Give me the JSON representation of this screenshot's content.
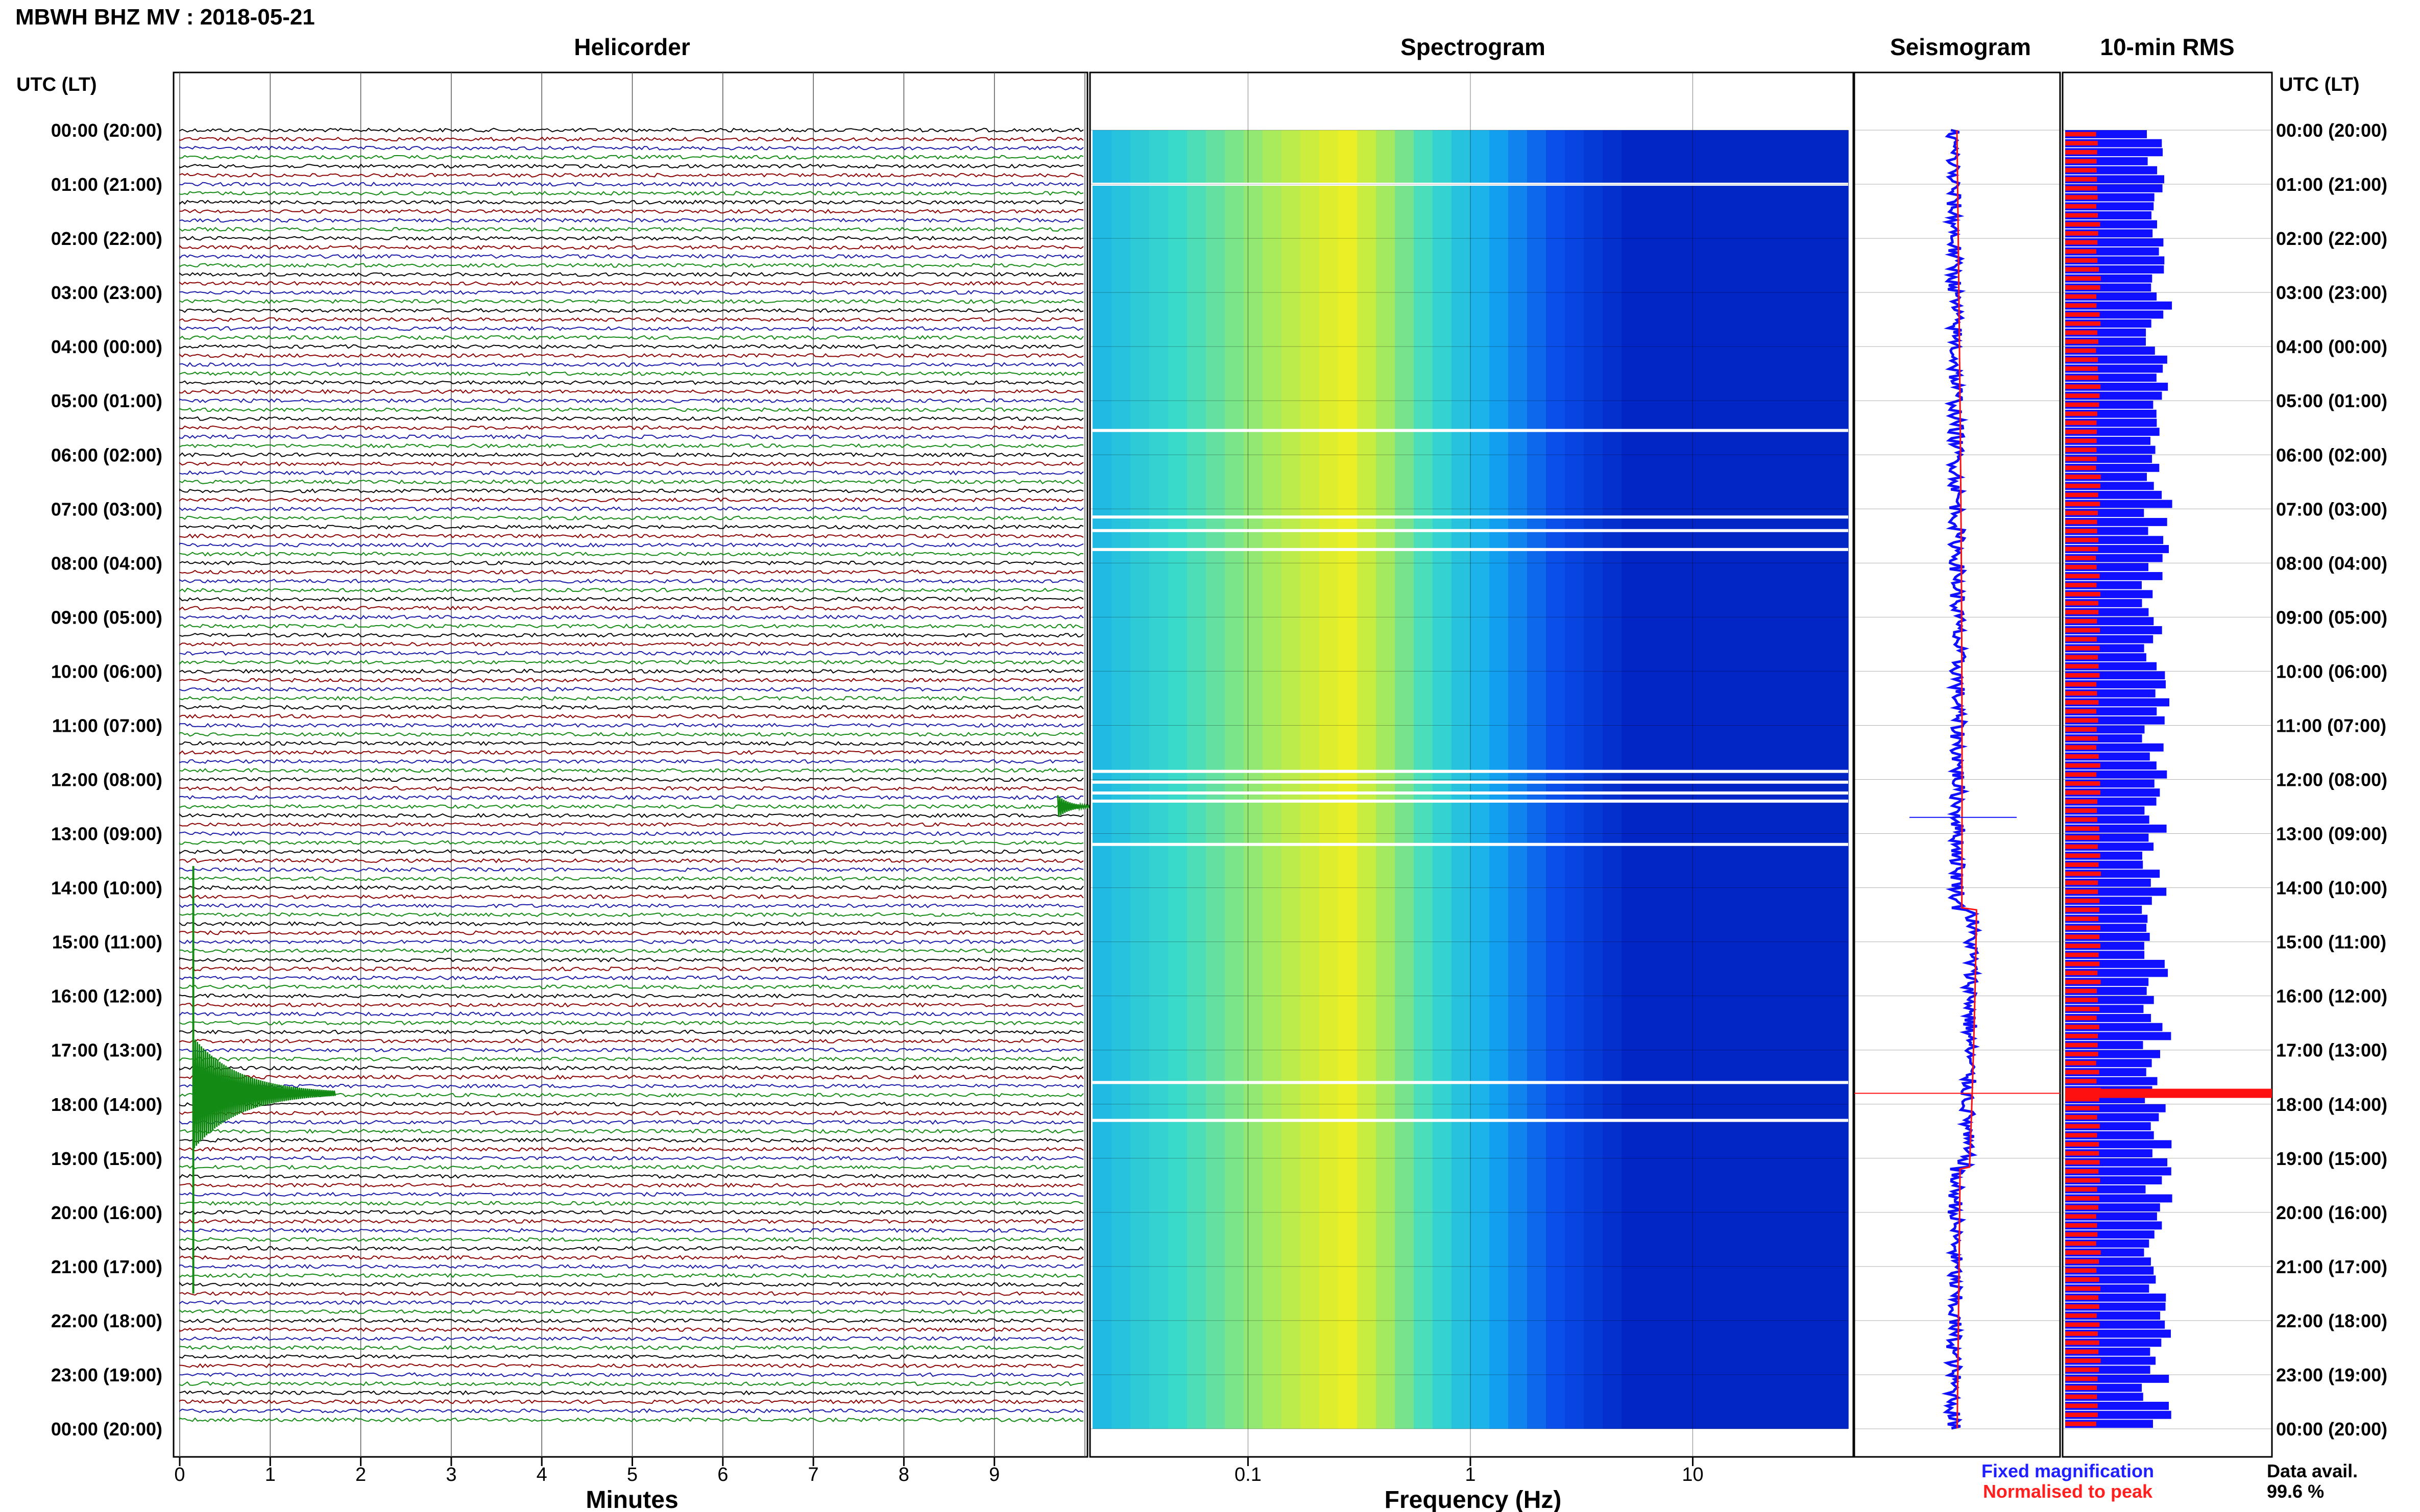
{
  "header": {
    "station_title": "MBWH BHZ MV : 2018-05-21"
  },
  "panels": {
    "helicorder": "Helicorder",
    "spectrogram": "Spectrogram",
    "seismogram": "Seismogram",
    "rms": "10-min RMS"
  },
  "time_axis_label": "UTC (LT)",
  "time_labels": [
    "00:00 (20:00)",
    "01:00 (21:00)",
    "02:00 (22:00)",
    "03:00 (23:00)",
    "04:00 (00:00)",
    "05:00 (01:00)",
    "06:00 (02:00)",
    "07:00 (03:00)",
    "08:00 (04:00)",
    "09:00 (05:00)",
    "10:00 (06:00)",
    "11:00 (07:00)",
    "12:00 (08:00)",
    "13:00 (09:00)",
    "14:00 (10:00)",
    "15:00 (11:00)",
    "16:00 (12:00)",
    "17:00 (13:00)",
    "18:00 (14:00)",
    "19:00 (15:00)",
    "20:00 (16:00)",
    "21:00 (17:00)",
    "22:00 (18:00)",
    "23:00 (19:00)",
    "00:00 (20:00)"
  ],
  "helicorder_axis": {
    "xlabel": "Minutes",
    "ticks": [
      "0",
      "1",
      "2",
      "3",
      "4",
      "5",
      "6",
      "7",
      "8",
      "9"
    ]
  },
  "spectrogram_axis": {
    "xlabel": "Frequency (Hz)",
    "ticks": [
      "0.1",
      "1",
      "10"
    ]
  },
  "legend": {
    "fixed": "Fixed magnification",
    "normalised": "Normalised to peak",
    "fixed_color": "#1f1fff",
    "normalised_color": "#ff1f1f"
  },
  "data_avail": {
    "label": "Data avail.",
    "value": "99.6 %"
  },
  "colors": {
    "trace_colors": [
      "#000000",
      "#8b0000",
      "#1a1aa8",
      "#138a13"
    ],
    "spectrogram_low": "#0020c8",
    "spectrogram_mid": "#ffee10",
    "rms_fixed": "#1010ff",
    "rms_normalised": "#ff1010"
  },
  "chart_data": [
    {
      "type": "line",
      "title": "Helicorder",
      "xlabel": "Minutes",
      "xlim": [
        0,
        10
      ],
      "ylim_hours_utc": [
        0,
        24
      ],
      "traces_per_hour": 6,
      "notable_events": [
        {
          "utc_hour": 12.5,
          "minute": 9.7,
          "note": "small event"
        },
        {
          "utc_hour": 17.8,
          "minute": 0.15,
          "note": "large event"
        }
      ]
    },
    {
      "type": "heatmap",
      "title": "Spectrogram",
      "xlabel": "Frequency (Hz)",
      "x_scale": "log",
      "xlim": [
        0.02,
        50
      ],
      "ylim_hours_utc": [
        0,
        24
      ],
      "peak_frequency_hz": 0.25,
      "gaps_utc_hours": [
        1.0,
        5.55,
        7.15,
        7.4,
        7.75,
        11.85,
        12.05,
        12.25,
        12.4,
        13.2,
        17.6,
        18.3
      ]
    },
    {
      "type": "line",
      "title": "Seismogram",
      "ylim_hours_utc": [
        0,
        24
      ],
      "events_utc_hours": [
        12.7,
        17.8
      ]
    },
    {
      "type": "bar",
      "title": "10-min RMS",
      "ylim_hours_utc": [
        0,
        24
      ],
      "bins_per_hour": 6,
      "peak_bin_utc_hour": 17.8
    }
  ]
}
